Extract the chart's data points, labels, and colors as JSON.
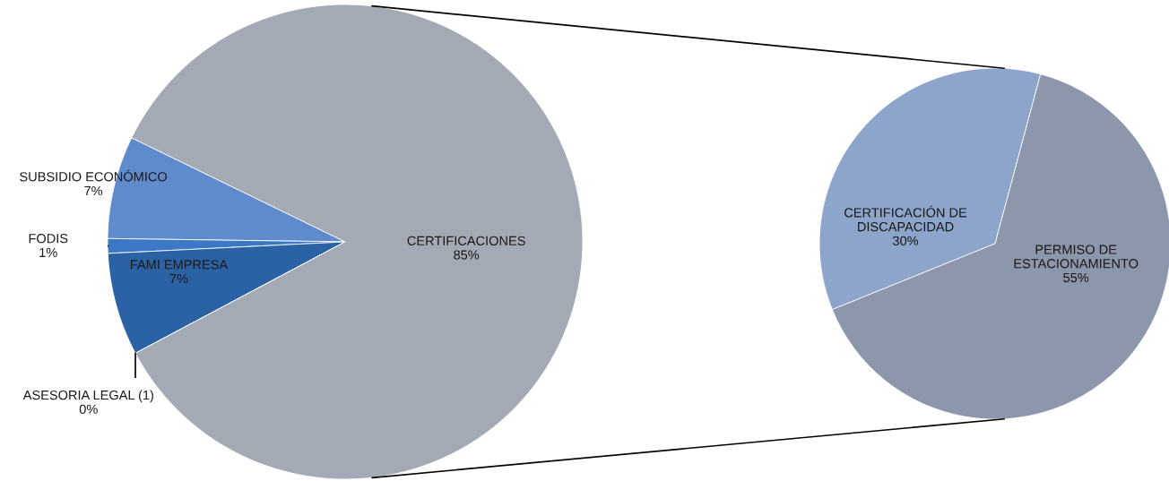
{
  "chart_data": [
    {
      "type": "pie",
      "categories": [
        "SUBSIDIO ECONÓMICO",
        "FODIS",
        "FAMI EMPRESA",
        "ASESORIA LEGAL (1)",
        "CERTIFICACIONES"
      ],
      "values": [
        7,
        1,
        7,
        0,
        85
      ],
      "value_labels": [
        "7%",
        "1%",
        "7%",
        "0%",
        "85%"
      ],
      "colors": [
        "#5f8bcc",
        "#3b79c6",
        "#2b62a6",
        "#1f4a80",
        "#a4a9b6"
      ]
    },
    {
      "type": "pie",
      "categories": [
        "CERTIFICACIÓN DE DISCAPACIDAD",
        "PERMISO DE ESTACIONAMIENTO"
      ],
      "values": [
        30,
        55
      ],
      "value_labels": [
        "30%",
        "55%"
      ],
      "colors": [
        "#8ea5cb",
        "#8c97ab"
      ]
    }
  ]
}
